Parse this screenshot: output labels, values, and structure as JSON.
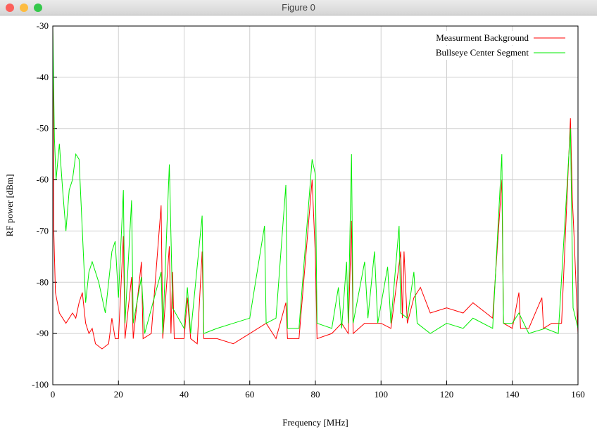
{
  "window": {
    "title": "Figure 0"
  },
  "chart_data": {
    "type": "line",
    "xlabel": "Frequency [MHz]",
    "ylabel": "RF power [dBm]",
    "xlim": [
      0,
      160
    ],
    "ylim": [
      -100,
      -30
    ],
    "xticks": [
      0,
      20,
      40,
      60,
      80,
      100,
      120,
      140,
      160
    ],
    "yticks": [
      -100,
      -90,
      -80,
      -70,
      -60,
      -50,
      -40,
      -30
    ],
    "grid": true,
    "legend": "top-right",
    "series": [
      {
        "name": "Measurment Background",
        "color": "#ff0000",
        "x": [
          0,
          0.3,
          0.8,
          2,
          4,
          6,
          7,
          8,
          9,
          10,
          11,
          12,
          13,
          15,
          17,
          18,
          19,
          20,
          21.5,
          22,
          24,
          24.5,
          27,
          27.5,
          30,
          33,
          33.5,
          35.5,
          36,
          36.5,
          37,
          40,
          41,
          42,
          44,
          45.5,
          46,
          50,
          55,
          60,
          65,
          68,
          71,
          71.5,
          75,
          79,
          80,
          80.5,
          85,
          88,
          90,
          91,
          91.5,
          95,
          100,
          103,
          106,
          106.5,
          107,
          108,
          110,
          112,
          115,
          120,
          125,
          128,
          132,
          134,
          136.8,
          137.3,
          140,
          142,
          142.5,
          145,
          149,
          149.5,
          152,
          155,
          157.7,
          158.3,
          158.8,
          160
        ],
        "values": [
          -30,
          -70,
          -82,
          -86,
          -88,
          -86,
          -87,
          -84,
          -82,
          -88,
          -90,
          -89,
          -92,
          -93,
          -92,
          -87,
          -91,
          -91,
          -71,
          -91,
          -79,
          -91,
          -76,
          -91,
          -90,
          -65,
          -91,
          -73,
          -90,
          -78,
          -91,
          -91,
          -83,
          -91,
          -92,
          -74,
          -91,
          -91,
          -92,
          -90,
          -88,
          -91,
          -84,
          -91,
          -91,
          -60,
          -75,
          -91,
          -90,
          -88,
          -90,
          -68,
          -90,
          -88,
          -88,
          -89,
          -74,
          -87,
          -74,
          -88,
          -83,
          -81,
          -86,
          -85,
          -86,
          -84,
          -86,
          -87,
          -60,
          -88,
          -89,
          -82,
          -89,
          -89,
          -83,
          -89,
          -88,
          -88,
          -48,
          -64,
          -71,
          -90
        ]
      },
      {
        "name": "Bullseye Center Segment",
        "color": "#00ee00",
        "x": [
          0,
          0.5,
          1,
          2,
          3,
          4,
          5,
          6,
          7,
          8,
          9,
          10,
          11,
          12,
          14,
          16,
          18,
          19,
          20,
          21.5,
          22,
          24,
          24.5,
          27,
          28,
          33,
          33.5,
          35.5,
          36.5,
          40,
          41,
          42,
          45.5,
          46,
          50,
          55,
          60,
          64.5,
          65,
          68,
          71,
          71.5,
          75,
          79,
          80,
          80.5,
          85,
          87,
          88,
          89.5,
          90,
          91,
          91.5,
          95,
          96,
          98,
          99,
          102,
          103,
          105.5,
          106,
          108,
          110,
          111,
          115,
          120,
          125,
          128,
          134,
          136.8,
          137.3,
          140,
          142,
          145,
          150,
          154,
          157.7,
          158.5,
          160
        ],
        "values": [
          -30,
          -52,
          -60,
          -53,
          -62,
          -70,
          -62,
          -60,
          -55,
          -56,
          -70,
          -84,
          -78,
          -76,
          -80,
          -86,
          -74,
          -72,
          -83,
          -62,
          -88,
          -64,
          -88,
          -79,
          -90,
          -78,
          -90,
          -57,
          -85,
          -89,
          -81,
          -90,
          -67,
          -90,
          -89,
          -88,
          -87,
          -69,
          -88,
          -87,
          -61,
          -89,
          -89,
          -56,
          -59,
          -88,
          -89,
          -81,
          -89,
          -76,
          -88,
          -55,
          -88,
          -76,
          -87,
          -74,
          -88,
          -77,
          -88,
          -69,
          -86,
          -87,
          -78,
          -88,
          -90,
          -88,
          -89,
          -87,
          -89,
          -55,
          -88,
          -88,
          -86,
          -90,
          -89,
          -90,
          -50,
          -85,
          -89
        ]
      }
    ]
  }
}
